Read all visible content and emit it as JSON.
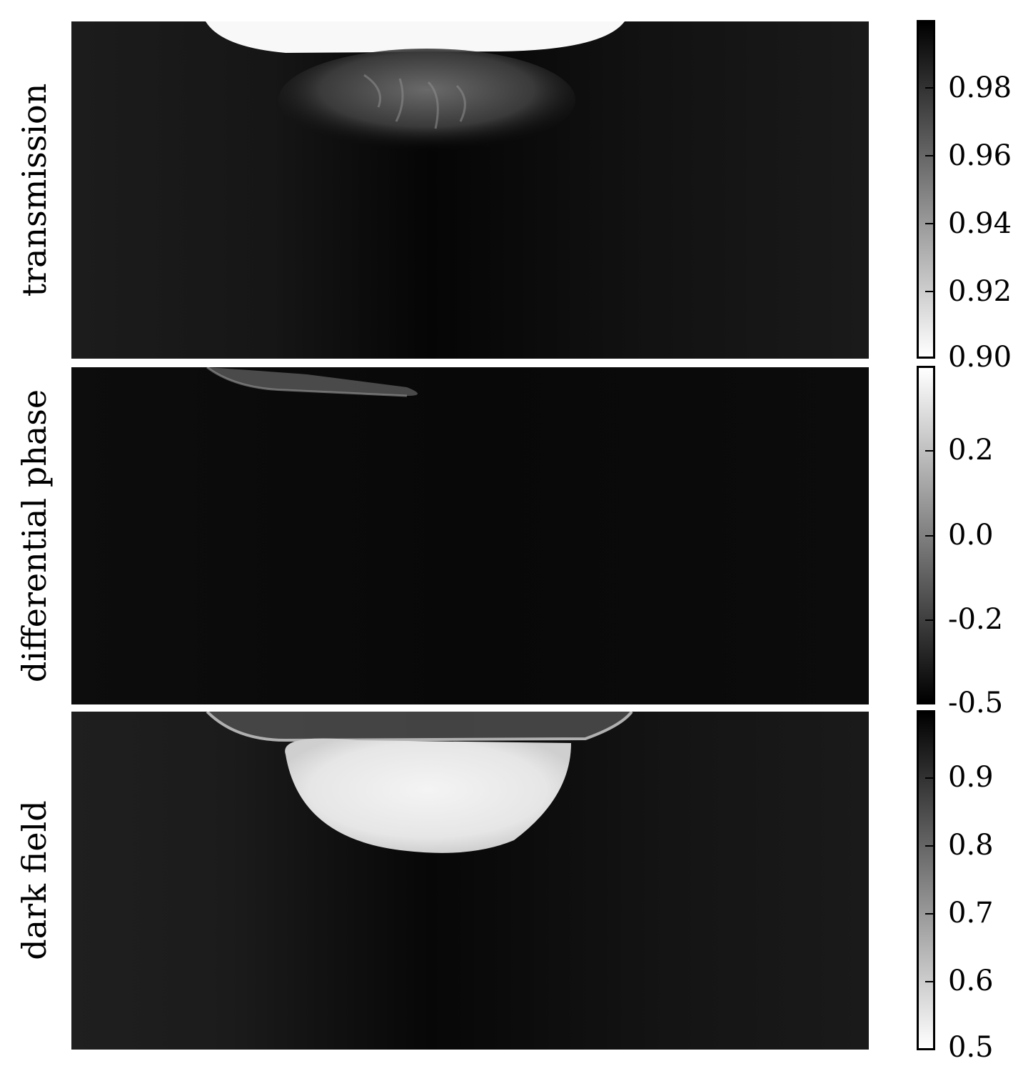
{
  "figure": {
    "panels": [
      {
        "id": "transmission",
        "label": "transmission",
        "colorbar": {
          "cmap": "gray_r",
          "ticks": [
            "0.98",
            "0.96",
            "0.94",
            "0.92",
            "0.90"
          ],
          "colors": {
            "top": "#000000",
            "bottom": "#ffffff"
          }
        }
      },
      {
        "id": "differential-phase",
        "label": "differential phase",
        "colorbar": {
          "cmap": "gray",
          "ticks": [
            "0.2",
            "0.0",
            "-0.2",
            "-0.5"
          ],
          "colors": {
            "top": "#ffffff",
            "bottom": "#000000"
          }
        }
      },
      {
        "id": "dark-field",
        "label": "dark field",
        "colorbar": {
          "cmap": "gray_r",
          "ticks": [
            "0.9",
            "0.8",
            "0.7",
            "0.6",
            "0.5"
          ],
          "colors": {
            "top": "#000000",
            "bottom": "#ffffff"
          }
        }
      }
    ]
  }
}
